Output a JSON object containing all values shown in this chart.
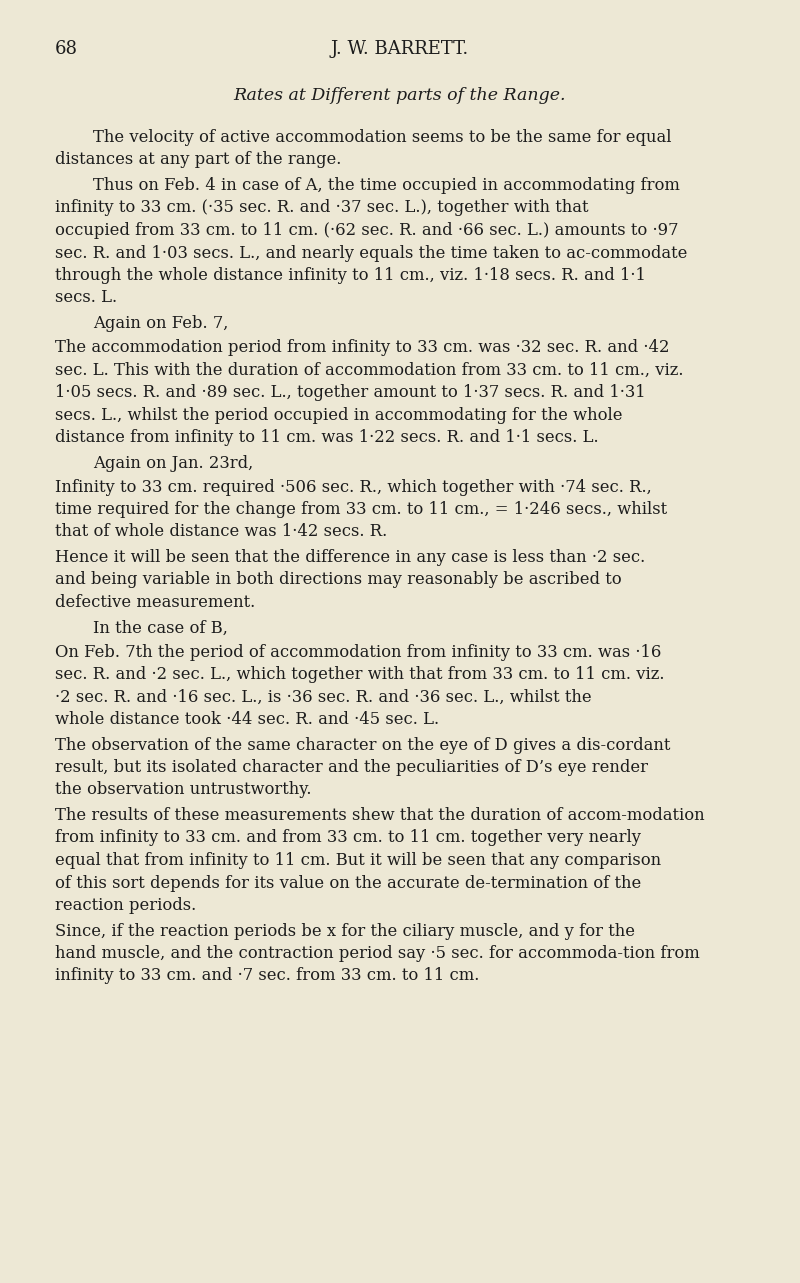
{
  "background_color": "#ede8d5",
  "page_number": "68",
  "header": "J. W. BARRETT.",
  "section_title": "Rates at Different parts of the Range.",
  "paragraphs": [
    {
      "indent": true,
      "short": false,
      "text": "The velocity of active accommodation seems to be the same for equal distances at any part of the range."
    },
    {
      "indent": true,
      "short": false,
      "text": "Thus on Feb. 4 in case of A, the time occupied in accommodating from infinity to 33 cm. (·35 sec. R. and ·37 sec. L.), together with that occupied from 33 cm. to 11 cm. (·62 sec. R. and ·66 sec. L.) amounts to ·97 sec. R. and 1·03 secs. L., and nearly equals the time taken to ac-commodate through the whole distance infinity to 11 cm., viz. 1·18 secs. R. and 1·1 secs. L."
    },
    {
      "indent": true,
      "short": true,
      "text": "Again on Feb. 7,"
    },
    {
      "indent": false,
      "short": false,
      "text": "The accommodation period from infinity to 33 cm. was ·32 sec. R. and ·42 sec. L.  This with the duration of accommodation from 33 cm. to 11 cm., viz. 1·05 secs. R. and ·89 sec. L., together amount to 1·37 secs. R. and 1·31 secs. L., whilst the period occupied in accommodating for the whole distance from infinity to 11 cm. was 1·22 secs. R. and 1·1 secs. L."
    },
    {
      "indent": true,
      "short": true,
      "text": "Again on Jan. 23rd,"
    },
    {
      "indent": false,
      "short": false,
      "text": "Infinity to 33 cm. required ·506 sec. R., which together with ·74 sec. R., time required for the change from 33 cm. to 11 cm., = 1·246 secs., whilst that of whole distance was 1·42 secs. R."
    },
    {
      "indent": false,
      "short": false,
      "text": "Hence it will be seen that the difference in any case is less than ·2 sec. and being variable in both directions may reasonably be ascribed to defective measurement."
    },
    {
      "indent": true,
      "short": true,
      "text": "In the case of B,"
    },
    {
      "indent": false,
      "short": false,
      "text": "On Feb. 7th the period of accommodation from infinity to 33 cm. was ·16 sec. R. and ·2 sec. L., which together with that from 33 cm. to 11 cm. viz. ·2 sec. R. and ·16 sec. L., is ·36 sec. R. and ·36 sec. L., whilst the whole distance took ·44 sec. R. and ·45 sec. L."
    },
    {
      "indent": false,
      "short": false,
      "text": "The observation of the same character on the eye of D gives a dis-cordant result, but its isolated character and the peculiarities of D’s eye render the observation untrustworthy."
    },
    {
      "indent": false,
      "short": false,
      "text": "The results of these measurements shew that the duration of accom-modation from infinity to 33 cm. and from 33 cm. to 11 cm. together very nearly equal that from infinity to 11 cm.  But it will be seen that any comparison of this sort depends for its value on the accurate de-termination of the reaction periods."
    },
    {
      "indent": false,
      "short": false,
      "text": "Since, if the reaction periods be x for the ciliary muscle, and y for the hand muscle, and the contraction period say ·5 sec. for accommoda-tion from infinity to 33 cm. and ·7 sec. from 33 cm. to 11 cm."
    }
  ],
  "figsize": [
    8.0,
    12.83
  ],
  "dpi": 100,
  "text_color": "#1c1c1c",
  "font_size_body": 11.8,
  "font_size_header": 13.0,
  "font_size_section": 12.5
}
